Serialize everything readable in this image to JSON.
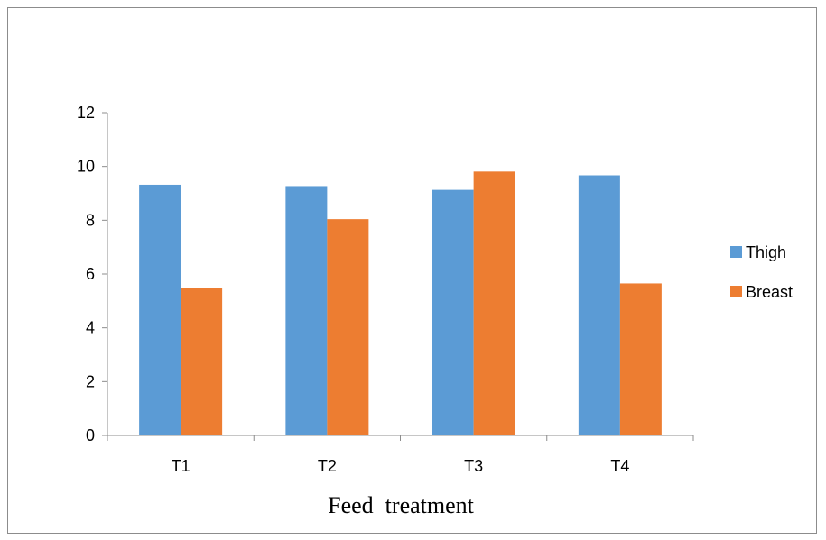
{
  "chart_data": {
    "type": "bar",
    "categories": [
      "T1",
      "T2",
      "T3",
      "T4"
    ],
    "series": [
      {
        "name": "Thigh",
        "values": [
          9.32,
          9.27,
          9.13,
          9.67
        ],
        "color": "#5B9BD5"
      },
      {
        "name": "Breast",
        "values": [
          5.48,
          8.04,
          9.81,
          5.65
        ],
        "color": "#ED7D31"
      }
    ],
    "title": "",
    "xlabel": "Feed  treatment",
    "ylabel": "",
    "ylim": [
      0,
      12
    ],
    "yticks": [
      "0",
      "2",
      "4",
      "6",
      "8",
      "10",
      "12"
    ],
    "grid": false,
    "legend_position": "right"
  }
}
